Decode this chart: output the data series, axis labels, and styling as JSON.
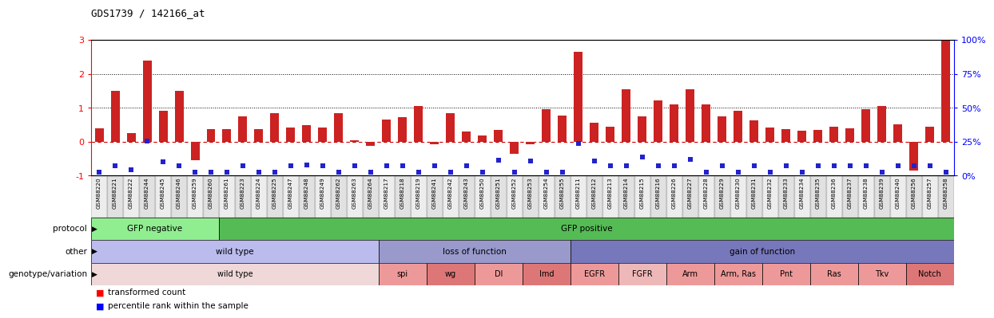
{
  "title": "GDS1739 / 142166_at",
  "samples": [
    "GSM88220",
    "GSM88221",
    "GSM88222",
    "GSM88244",
    "GSM88245",
    "GSM88246",
    "GSM88259",
    "GSM88260",
    "GSM88261",
    "GSM88223",
    "GSM88224",
    "GSM88225",
    "GSM88247",
    "GSM88248",
    "GSM88249",
    "GSM88262",
    "GSM88263",
    "GSM88264",
    "GSM88217",
    "GSM88218",
    "GSM88219",
    "GSM88241",
    "GSM88242",
    "GSM88243",
    "GSM88250",
    "GSM88251",
    "GSM88252",
    "GSM88253",
    "GSM88254",
    "GSM88255",
    "GSM88211",
    "GSM88212",
    "GSM88213",
    "GSM88214",
    "GSM88215",
    "GSM88216",
    "GSM88226",
    "GSM88227",
    "GSM88228",
    "GSM88229",
    "GSM88230",
    "GSM88231",
    "GSM88232",
    "GSM88233",
    "GSM88234",
    "GSM88235",
    "GSM88236",
    "GSM88237",
    "GSM88238",
    "GSM88239",
    "GSM88240",
    "GSM88256",
    "GSM88257",
    "GSM88258"
  ],
  "bar_values": [
    0.4,
    1.5,
    0.25,
    2.4,
    0.92,
    1.5,
    -0.55,
    0.38,
    0.38,
    0.75,
    0.38,
    0.85,
    0.42,
    0.48,
    0.42,
    0.85,
    0.05,
    -0.12,
    0.65,
    0.72,
    1.05,
    -0.08,
    0.85,
    0.3,
    0.18,
    0.35,
    -0.35,
    -0.08,
    0.95,
    0.78,
    2.65,
    0.55,
    0.45,
    1.55,
    0.75,
    1.22,
    1.1,
    1.55,
    1.1,
    0.75,
    0.92,
    0.62,
    0.42,
    0.38,
    0.32,
    0.35,
    0.45,
    0.4,
    0.95,
    1.05,
    0.52,
    -0.85,
    0.45,
    3.0
  ],
  "percentile_values": [
    -0.9,
    -0.72,
    -0.82,
    0.02,
    -0.6,
    -0.72,
    -0.9,
    -0.9,
    -0.9,
    -0.72,
    -0.9,
    -0.9,
    -0.72,
    -0.68,
    -0.72,
    -0.9,
    -0.72,
    -0.9,
    -0.72,
    -0.72,
    -0.9,
    -0.72,
    -0.9,
    -0.72,
    -0.9,
    -0.55,
    -0.9,
    -0.58,
    -0.9,
    -0.9,
    -0.05,
    -0.58,
    -0.72,
    -0.72,
    -0.45,
    -0.72,
    -0.72,
    -0.52,
    -0.9,
    -0.72,
    -0.9,
    -0.72,
    -0.9,
    -0.72,
    -0.9,
    -0.72,
    -0.72,
    -0.72,
    -0.72,
    -0.9,
    -0.72,
    -0.72,
    -0.72,
    -0.9
  ],
  "protocol_groups": [
    {
      "label": "GFP negative",
      "start": 0,
      "end": 8,
      "color": "#90EE90"
    },
    {
      "label": "GFP positive",
      "start": 8,
      "end": 54,
      "color": "#55BB55"
    }
  ],
  "other_groups": [
    {
      "label": "wild type",
      "start": 0,
      "end": 18,
      "color": "#BBBBEE"
    },
    {
      "label": "loss of function",
      "start": 18,
      "end": 30,
      "color": "#9999CC"
    },
    {
      "label": "gain of function",
      "start": 30,
      "end": 54,
      "color": "#7777BB"
    }
  ],
  "genotype_groups": [
    {
      "label": "wild type",
      "start": 0,
      "end": 18,
      "color": "#F0D8D8"
    },
    {
      "label": "spi",
      "start": 18,
      "end": 21,
      "color": "#EE9999"
    },
    {
      "label": "wg",
      "start": 21,
      "end": 24,
      "color": "#DD7777"
    },
    {
      "label": "Dl",
      "start": 24,
      "end": 27,
      "color": "#EE9999"
    },
    {
      "label": "Imd",
      "start": 27,
      "end": 30,
      "color": "#DD7777"
    },
    {
      "label": "EGFR",
      "start": 30,
      "end": 33,
      "color": "#EE9999"
    },
    {
      "label": "FGFR",
      "start": 33,
      "end": 36,
      "color": "#EEB8B8"
    },
    {
      "label": "Arm",
      "start": 36,
      "end": 39,
      "color": "#EE9999"
    },
    {
      "label": "Arm, Ras",
      "start": 39,
      "end": 42,
      "color": "#EE9999"
    },
    {
      "label": "Pnt",
      "start": 42,
      "end": 45,
      "color": "#EE9999"
    },
    {
      "label": "Ras",
      "start": 45,
      "end": 48,
      "color": "#EE9999"
    },
    {
      "label": "Tkv",
      "start": 48,
      "end": 51,
      "color": "#EE9999"
    },
    {
      "label": "Notch",
      "start": 51,
      "end": 54,
      "color": "#DD7777"
    }
  ],
  "bar_color": "#CC2222",
  "percentile_color": "#2222CC",
  "ylim": [
    -1.0,
    3.0
  ],
  "right_ylim": [
    0,
    100
  ],
  "right_yticks": [
    0,
    25,
    50,
    75,
    100
  ],
  "right_yticklabels": [
    "0%",
    "25%",
    "50%",
    "75%",
    "100%"
  ],
  "left_yticks": [
    -1,
    0,
    1,
    2,
    3
  ],
  "left_yticklabels": [
    "-1",
    "0",
    "1",
    "2",
    "3"
  ]
}
